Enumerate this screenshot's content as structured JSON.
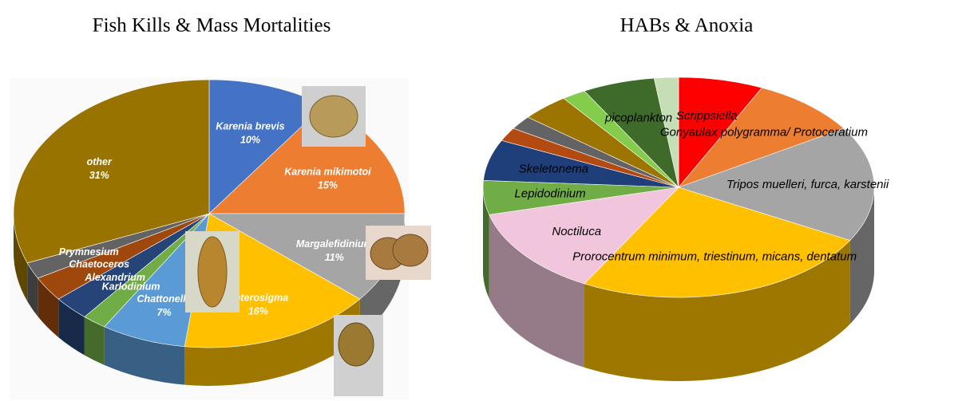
{
  "chart_data": [
    {
      "type": "pie",
      "title": "Fish Kills & Mass Mortalities",
      "categories": [
        "Karenia brevis",
        "Karenia mikimotoi",
        "Margalefidinium",
        "Heterosigma",
        "Chattonella",
        "Karlodinium",
        "Alexandrium",
        "Chaetoceros",
        "Prymnesium",
        "other"
      ],
      "values": [
        10,
        15,
        11,
        16,
        7,
        2,
        3,
        3,
        2,
        31
      ],
      "value_labels": [
        "10%",
        "15%",
        "11%",
        "16%",
        "7%",
        null,
        null,
        null,
        null,
        "31%"
      ],
      "colors": [
        "#4472c4",
        "#ed7d31",
        "#a5a5a5",
        "#ffc000",
        "#5b9bd5",
        "#70ad47",
        "#264478",
        "#9e480e",
        "#636363",
        "#997300"
      ]
    },
    {
      "type": "pie",
      "title": "HABs & Anoxia",
      "categories": [
        "Scrippsiella",
        "Gonyaulax polygramma/ Protoceratium",
        "Tripos muelleri, furca, karstenii",
        "Prorocentrum minimum, triestinum, micans, dentatum",
        "Noctiluca",
        "Lepidodinium",
        "Skeletonema",
        null,
        null,
        null,
        null,
        "picoplankton",
        null
      ],
      "values": [
        7,
        9,
        17,
        25,
        13,
        5,
        6,
        2,
        2,
        4,
        2,
        6,
        2
      ],
      "colors": [
        "#ff0000",
        "#ed7d31",
        "#a5a5a5",
        "#ffc000",
        "#f1c6dc",
        "#70ad47",
        "#1f3f7a",
        "#b34a12",
        "#636363",
        "#9c7400",
        "#84cc4c",
        "#3f6b2a",
        "#c5deb5"
      ]
    }
  ]
}
